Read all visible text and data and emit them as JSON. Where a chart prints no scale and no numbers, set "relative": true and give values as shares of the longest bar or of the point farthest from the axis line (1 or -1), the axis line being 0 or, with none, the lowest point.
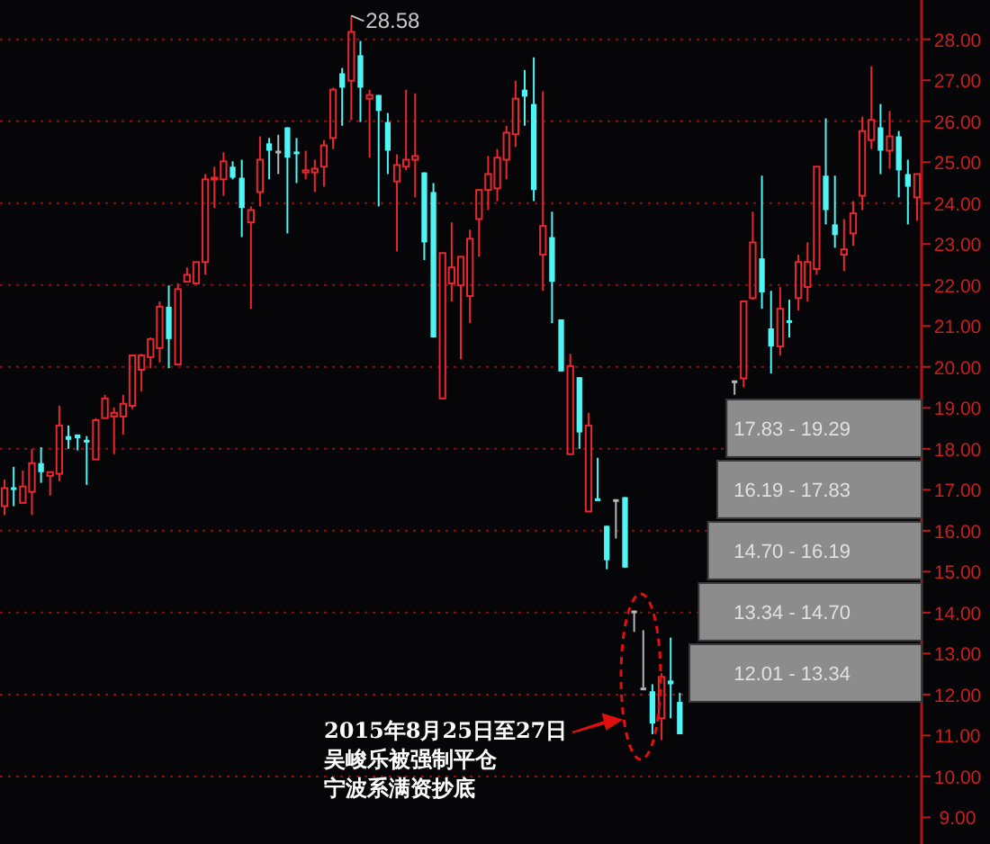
{
  "chart_data": [
    {
      "type": "candlestick",
      "categories": [
        null,
        null,
        null,
        null,
        null,
        null,
        null,
        null,
        null,
        null,
        null,
        null,
        null,
        null,
        null,
        null,
        null,
        null,
        null,
        null,
        null,
        null,
        null,
        null,
        null,
        null,
        null,
        null,
        null,
        null,
        null,
        null,
        null,
        null,
        null,
        null,
        null,
        null,
        null,
        null,
        null,
        null,
        null,
        null,
        null,
        null,
        null,
        null,
        null,
        null,
        null,
        null,
        null,
        null,
        null,
        null,
        null,
        null,
        null,
        null,
        null,
        null,
        null,
        null,
        null,
        null,
        null,
        null,
        null,
        null,
        null,
        null,
        null,
        null,
        null,
        null,
        null,
        null,
        null,
        null,
        null,
        null,
        null,
        null,
        null,
        null,
        null,
        null,
        null,
        null,
        null,
        null,
        null,
        null,
        null,
        null,
        null,
        null,
        null,
        null,
        null
      ],
      "ohlc": [
        [
          16.6,
          17.25,
          16.38,
          17.04
        ],
        [
          17.06,
          17.56,
          16.6,
          17.01
        ],
        [
          16.68,
          17.47,
          16.68,
          17.08
        ],
        [
          16.95,
          18.0,
          16.38,
          17.65
        ],
        [
          17.65,
          18.04,
          17.17,
          17.43
        ],
        [
          17.34,
          17.43,
          16.86,
          17.43
        ],
        [
          17.39,
          19.05,
          17.21,
          18.57
        ],
        [
          18.31,
          18.57,
          18.0,
          18.22
        ],
        [
          18.35,
          18.35,
          17.96,
          18.26
        ],
        [
          18.22,
          18.31,
          17.12,
          18.17
        ],
        [
          17.74,
          18.75,
          17.74,
          18.7
        ],
        [
          18.75,
          19.32,
          18.75,
          19.23
        ],
        [
          18.79,
          19.01,
          17.87,
          18.88
        ],
        [
          18.79,
          19.32,
          18.35,
          19.1
        ],
        [
          19.05,
          20.28,
          18.97,
          20.28
        ],
        [
          19.93,
          20.32,
          19.4,
          20.28
        ],
        [
          20.24,
          20.72,
          19.97,
          20.68
        ],
        [
          20.46,
          21.6,
          20.11,
          21.47
        ],
        [
          21.47,
          21.99,
          19.97,
          20.68
        ],
        [
          20.06,
          22.04,
          20.06,
          21.9
        ],
        [
          22.08,
          22.43,
          22.08,
          22.25
        ],
        [
          22.04,
          22.56,
          22.04,
          22.56
        ],
        [
          22.56,
          24.71,
          22.25,
          24.58
        ],
        [
          24.58,
          24.89,
          23.88,
          24.62
        ],
        [
          24.58,
          25.24,
          24.18,
          25.02
        ],
        [
          24.89,
          25.02,
          24.58,
          24.62
        ],
        [
          24.62,
          25.06,
          23.17,
          23.88
        ],
        [
          23.53,
          23.92,
          21.42,
          23.83
        ],
        [
          24.27,
          25.63,
          23.92,
          25.06
        ],
        [
          25.46,
          25.59,
          24.58,
          25.28
        ],
        [
          25.28,
          25.67,
          24.71,
          25.28
        ],
        [
          25.85,
          25.85,
          23.26,
          25.11
        ],
        [
          25.26,
          25.59,
          24.49,
          25.22
        ],
        [
          24.75,
          25.28,
          24.58,
          24.8
        ],
        [
          24.75,
          25.06,
          24.27,
          24.84
        ],
        [
          24.89,
          25.54,
          24.4,
          25.41
        ],
        [
          25.59,
          26.82,
          25.32,
          26.77
        ],
        [
          27.17,
          27.3,
          25.89,
          26.82
        ],
        [
          26.99,
          28.58,
          26.03,
          28.18
        ],
        [
          27.61,
          27.96,
          25.98,
          26.82
        ],
        [
          26.55,
          26.77,
          25.11,
          26.64
        ],
        [
          26.64,
          26.64,
          23.92,
          26.25
        ],
        [
          25.98,
          26.2,
          24.71,
          25.28
        ],
        [
          24.53,
          25.19,
          22.82,
          24.93
        ],
        [
          24.89,
          26.77,
          24.8,
          25.06
        ],
        [
          25.06,
          26.68,
          24.14,
          25.15
        ],
        [
          24.75,
          24.75,
          22.61,
          23.04
        ],
        [
          24.27,
          24.49,
          20.72,
          20.72
        ],
        [
          19.23,
          22.78,
          19.23,
          22.78
        ],
        [
          22.04,
          23.53,
          21.6,
          22.43
        ],
        [
          21.99,
          22.69,
          20.19,
          22.69
        ],
        [
          21.73,
          23.35,
          21.07,
          23.13
        ],
        [
          23.61,
          24.32,
          22.69,
          24.32
        ],
        [
          24.32,
          25.15,
          23.83,
          24.71
        ],
        [
          24.36,
          25.32,
          24.05,
          25.11
        ],
        [
          25.06,
          25.89,
          24.58,
          25.72
        ],
        [
          25.68,
          26.99,
          25.37,
          26.55
        ],
        [
          26.77,
          27.25,
          25.89,
          26.6
        ],
        [
          26.42,
          27.56,
          24.05,
          24.32
        ],
        [
          22.74,
          26.73,
          21.86,
          23.44
        ],
        [
          23.17,
          23.79,
          21.07,
          22.08
        ],
        [
          21.16,
          21.16,
          19.89,
          19.89
        ],
        [
          17.87,
          20.32,
          17.87,
          20.02
        ],
        [
          19.75,
          19.75,
          18.0,
          18.4
        ],
        [
          16.47,
          18.88,
          16.47,
          18.57
        ],
        [
          16.79,
          17.78,
          16.75,
          16.75
        ],
        [
          16.12,
          16.12,
          15.06,
          15.28
        ],
        [
          16.77,
          16.77,
          15.81,
          16.77
        ],
        [
          16.82,
          16.82,
          15.1,
          15.1
        ],
        [
          14.05,
          14.05,
          13.53,
          14.05
        ],
        [
          12.17,
          13.57,
          12.17,
          12.17
        ],
        [
          12.08,
          12.25,
          11.03,
          11.29
        ],
        [
          11.42,
          12.52,
          10.89,
          12.43
        ],
        [
          12.34,
          13.39,
          11.42,
          12.25
        ],
        [
          11.82,
          12.04,
          11.03,
          11.03
        ],
        null,
        null,
        null,
        null,
        null,
        [
          19.67,
          19.67,
          19.32,
          19.67
        ],
        [
          19.72,
          21.6,
          19.5,
          21.6
        ],
        [
          21.68,
          23.79,
          21.64,
          23.04
        ],
        [
          22.65,
          24.67,
          21.42,
          21.82
        ],
        [
          20.94,
          21.86,
          19.84,
          20.5
        ],
        [
          20.5,
          21.95,
          20.28,
          21.42
        ],
        [
          21.14,
          21.64,
          20.72,
          21.09
        ],
        [
          21.68,
          22.74,
          21.38,
          22.56
        ],
        [
          21.95,
          23.04,
          21.6,
          22.56
        ],
        [
          22.39,
          24.89,
          22.25,
          24.89
        ],
        [
          24.67,
          26.07,
          23.48,
          23.83
        ],
        [
          23.48,
          24.67,
          22.91,
          23.22
        ],
        [
          22.74,
          23.61,
          22.34,
          22.87
        ],
        [
          23.26,
          24.05,
          22.96,
          23.75
        ],
        [
          24.18,
          26.11,
          23.83,
          25.76
        ],
        [
          25.54,
          27.34,
          25.32,
          26.03
        ],
        [
          25.85,
          26.42,
          24.71,
          25.28
        ],
        [
          25.28,
          26.25,
          24.84,
          25.63
        ],
        [
          25.63,
          25.76,
          24.14,
          24.8
        ],
        [
          24.71,
          25.06,
          23.48,
          24.4
        ],
        [
          24.14,
          24.71,
          23.57,
          24.71
        ]
      ],
      "colors": [
        "#e8282d",
        "#4ff5f5",
        "#e8282d",
        "#e8282d",
        "#4ff5f5",
        "#e8282d",
        "#e8282d",
        "#4ff5f5",
        "#4ff5f5",
        "#4ff5f5",
        "#e8282d",
        "#e8282d",
        "#e8282d",
        "#e8282d",
        "#e8282d",
        "#e8282d",
        "#e8282d",
        "#e8282d",
        "#4ff5f5",
        "#e8282d",
        "#e8282d",
        "#e8282d",
        "#e8282d",
        "#e8282d",
        "#e8282d",
        "#4ff5f5",
        "#4ff5f5",
        "#e8282d",
        "#e8282d",
        "#4ff5f5",
        "#b4b4b4",
        "#4ff5f5",
        "#4ff5f5",
        "#e8282d",
        "#e8282d",
        "#e8282d",
        "#e8282d",
        "#4ff5f5",
        "#e8282d",
        "#4ff5f5",
        "#e8282d",
        "#4ff5f5",
        "#4ff5f5",
        "#e8282d",
        "#e8282d",
        "#e8282d",
        "#4ff5f5",
        "#4ff5f5",
        "#e8282d",
        "#e8282d",
        "#e8282d",
        "#e8282d",
        "#e8282d",
        "#e8282d",
        "#e8282d",
        "#e8282d",
        "#e8282d",
        "#4ff5f5",
        "#4ff5f5",
        "#e8282d",
        "#4ff5f5",
        "#4ff5f5",
        "#e8282d",
        "#4ff5f5",
        "#e8282d",
        "#4ff5f5",
        "#4ff5f5",
        "#b4b4b4",
        "#4ff5f5",
        "#b4b4b4",
        "#b4b4b4",
        "#4ff5f5",
        "#e8282d",
        "#4ff5f5",
        "#4ff5f5",
        null,
        null,
        null,
        null,
        null,
        "#b4b4b4",
        "#e8282d",
        "#e8282d",
        "#4ff5f5",
        "#4ff5f5",
        "#e8282d",
        "#4ff5f5",
        "#e8282d",
        "#e8282d",
        "#e8282d",
        "#4ff5f5",
        "#4ff5f5",
        "#e8282d",
        "#e8282d",
        "#e8282d",
        "#e8282d",
        "#4ff5f5",
        "#e8282d",
        "#4ff5f5",
        "#4ff5f5",
        "#e8282d"
      ],
      "ylim": [
        8.35,
        28.96
      ],
      "yticks": [
        {
          "value": 9,
          "label": "9.00"
        },
        {
          "value": 10,
          "label": "10.00"
        },
        {
          "value": 11,
          "label": "11.00"
        },
        {
          "value": 12,
          "label": "12.00"
        },
        {
          "value": 13,
          "label": "13.00"
        },
        {
          "value": 14,
          "label": "14.00"
        },
        {
          "value": 15,
          "label": "15.00"
        },
        {
          "value": 16,
          "label": "16.00"
        },
        {
          "value": 17,
          "label": "17.00"
        },
        {
          "value": 18,
          "label": "18.00"
        },
        {
          "value": 19,
          "label": "19.00"
        },
        {
          "value": 20,
          "label": "20.00"
        },
        {
          "value": 21,
          "label": "21.00"
        },
        {
          "value": 22,
          "label": "22.00"
        },
        {
          "value": 23,
          "label": "23.00"
        },
        {
          "value": 24,
          "label": "24.00"
        },
        {
          "value": 25,
          "label": "25.00"
        },
        {
          "value": 26,
          "label": "26.00"
        },
        {
          "value": 27,
          "label": "27.00"
        },
        {
          "value": 28,
          "label": "28.00"
        }
      ],
      "grid": "y",
      "annotations": [
        "28.58",
        "2015年8月25日至27日",
        "吴峻乐被强制平仓",
        "宁波系满资抄底"
      ]
    },
    {
      "type": "bar",
      "orientation": "horizontal",
      "relative": true,
      "categories": [
        "17.83 - 19.29",
        "16.19 - 17.83",
        "14.70 - 16.19",
        "13.34 - 14.70",
        "12.01 - 13.34"
      ],
      "values": [
        0.84,
        0.88,
        0.92,
        0.96,
        1
      ],
      "color": "#8c8c8c"
    }
  ]
}
